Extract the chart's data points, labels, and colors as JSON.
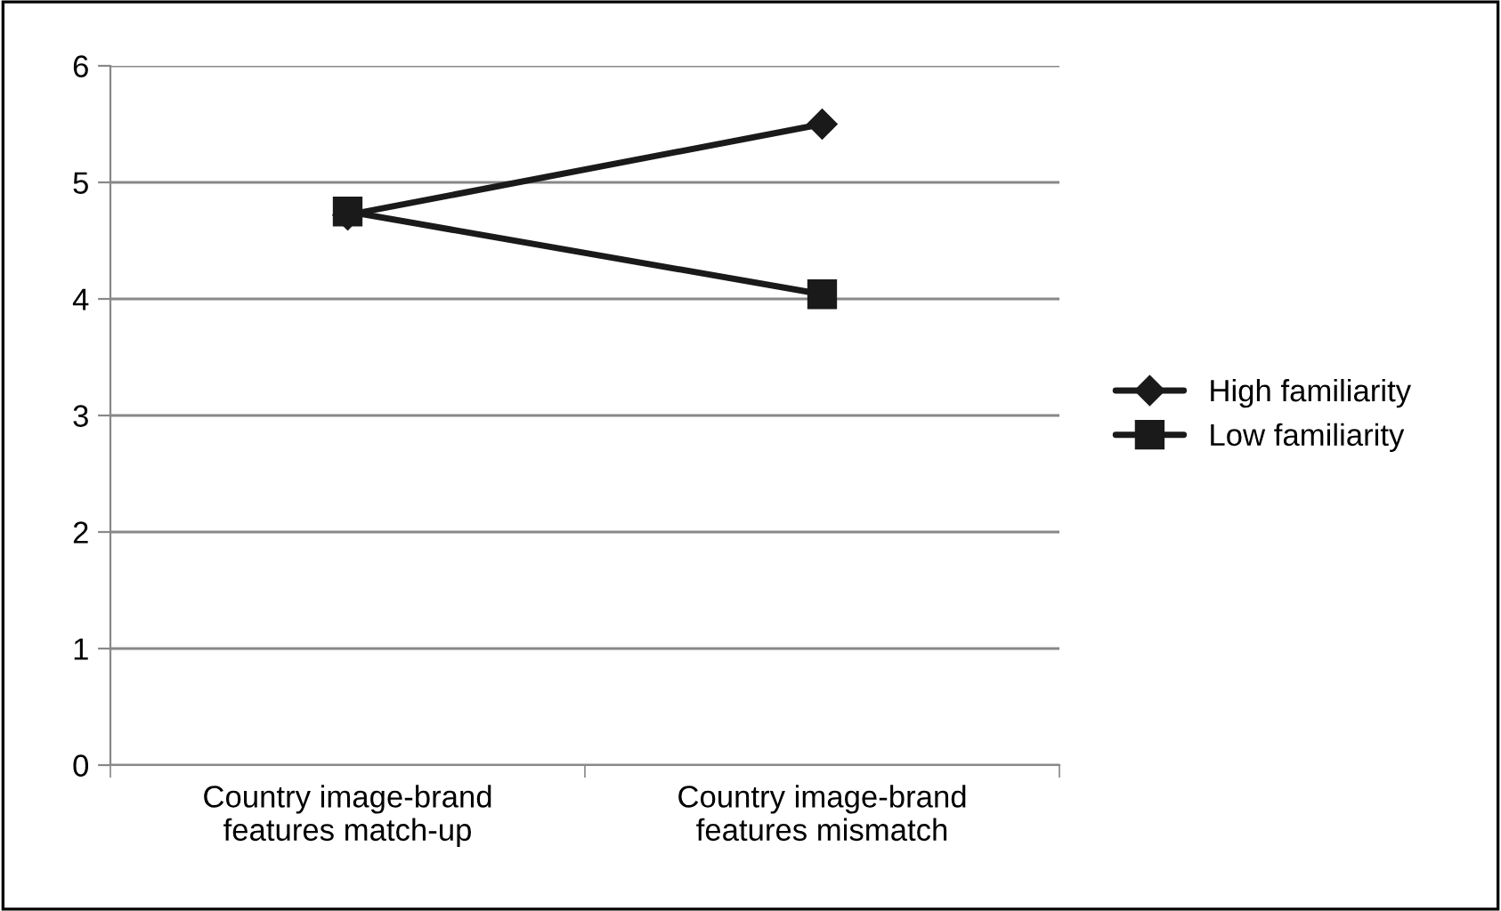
{
  "chart_data": {
    "type": "line",
    "categories": [
      "Country image-brand\nfeatures match-up",
      "Country image-brand\nfeatures mismatch"
    ],
    "series": [
      {
        "name": "High familiarity",
        "color": "#1a1a1a",
        "marker": "diamond",
        "values": [
          4.72,
          5.5
        ]
      },
      {
        "name": "Low familiarity",
        "color": "#1a1a1a",
        "marker": "square",
        "values": [
          4.75,
          4.04
        ]
      }
    ],
    "ylim": [
      0,
      6
    ],
    "yticks": [
      0,
      1,
      2,
      3,
      4,
      5,
      6
    ],
    "grid": "y",
    "legend": "right",
    "line_style": "solid"
  }
}
